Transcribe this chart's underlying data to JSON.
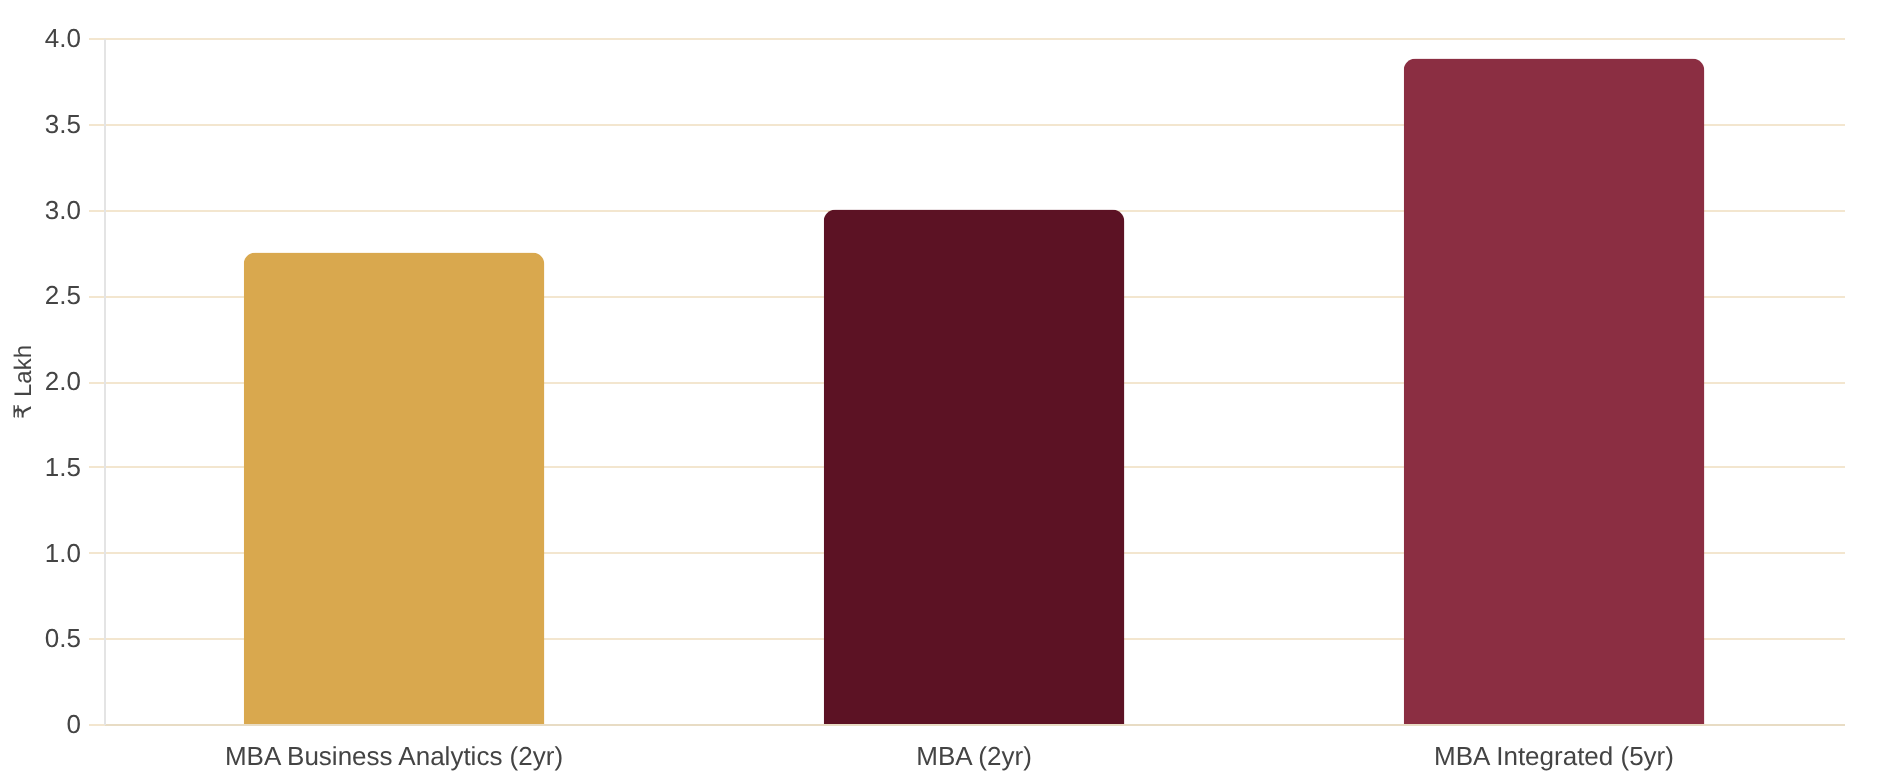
{
  "chart_data": {
    "type": "bar",
    "ylabel": "₹ Lakh",
    "categories": [
      "MBA Business Analytics (2yr)",
      "MBA (2yr)",
      "MBA Integrated (5yr)"
    ],
    "values": [
      2.75,
      3.0,
      3.88
    ],
    "colors": [
      "#d9a84e",
      "#5c1224",
      "#8b2e42"
    ],
    "ylim": [
      0,
      4
    ],
    "yticks": [
      {
        "value": 0,
        "label": "0"
      },
      {
        "value": 0.5,
        "label": "0.5"
      },
      {
        "value": 1,
        "label": "1.0"
      },
      {
        "value": 1.5,
        "label": "1.5"
      },
      {
        "value": 2,
        "label": "2.0"
      },
      {
        "value": 2.5,
        "label": "2.5"
      },
      {
        "value": 3,
        "label": "3.0"
      },
      {
        "value": 3.5,
        "label": "3.5"
      },
      {
        "value": 4,
        "label": "4.0"
      }
    ],
    "grid": "y"
  }
}
